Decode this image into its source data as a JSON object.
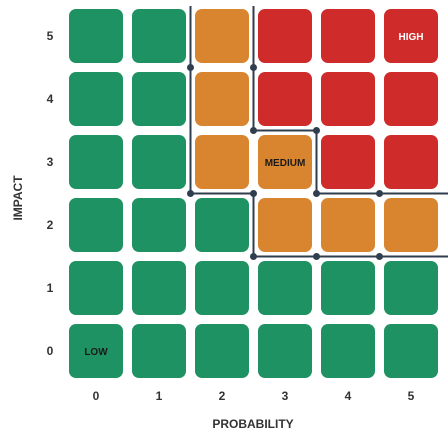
{
  "chart_data": {
    "type": "heatmap",
    "xlabel": "PROBABILITY",
    "ylabel": "IMPACT",
    "x": [
      0,
      1,
      2,
      3,
      4,
      5
    ],
    "y": [
      0,
      1,
      2,
      3,
      4,
      5
    ],
    "colors": {
      "green": "#1e9262",
      "orange": "#d9852f",
      "red": "#cf2b2b",
      "line": "#2f3e4e"
    },
    "grid_rows_top_to_bottom": [
      [
        "green",
        "green",
        "orange",
        "red",
        "red",
        "red"
      ],
      [
        "green",
        "green",
        "orange",
        "red",
        "red",
        "red"
      ],
      [
        "green",
        "green",
        "orange",
        "orange",
        "red",
        "red"
      ],
      [
        "green",
        "green",
        "green",
        "orange",
        "orange",
        "orange"
      ],
      [
        "green",
        "green",
        "green",
        "green",
        "green",
        "green"
      ],
      [
        "green",
        "green",
        "green",
        "green",
        "green",
        "green"
      ]
    ],
    "zone_labels": [
      {
        "text": "HIGH",
        "x": 5,
        "y": 5,
        "color": "#ffffff"
      },
      {
        "text": "MEDIUM",
        "x": 3,
        "y": 3,
        "color": "#1a1a1a"
      },
      {
        "text": "LOW",
        "x": 0,
        "y": 0,
        "color": "#1a1a1a"
      }
    ]
  }
}
